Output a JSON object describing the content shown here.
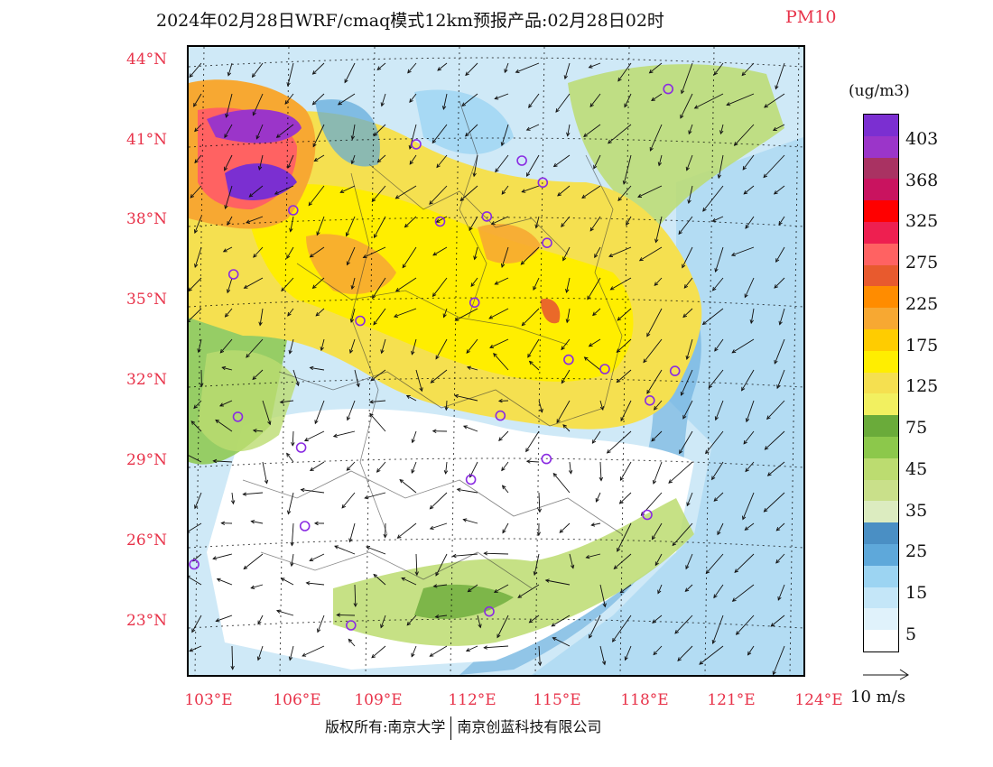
{
  "title": {
    "main": "2024年02月28日WRF/cmaq模式12km预报产品:02月28日02时",
    "species": "PM10"
  },
  "lat_labels": [
    "44°N",
    "41°N",
    "38°N",
    "35°N",
    "32°N",
    "29°N",
    "26°N",
    "23°N"
  ],
  "lon_labels": [
    "103°E",
    "106°E",
    "109°E",
    "112°E",
    "115°E",
    "118°E",
    "121°E",
    "124°E"
  ],
  "colorbar": {
    "unit": "(ug/m3)",
    "labels": [
      "403",
      "368",
      "325",
      "275",
      "225",
      "175",
      "125",
      "75",
      "45",
      "35",
      "25",
      "15",
      "5"
    ],
    "colors": [
      "#7b2fd1",
      "#9b35c9",
      "#a93262",
      "#c9135f",
      "#ff0000",
      "#ee1f50",
      "#ff6262",
      "#e85a2e",
      "#ff8c00",
      "#f7a832",
      "#ffcc00",
      "#ffee00",
      "#f5e050",
      "#f2f060",
      "#6aab3a",
      "#8cc84b",
      "#bcdc70",
      "#c9e08a",
      "#dcecc0",
      "#4a8fc4",
      "#5ea8da",
      "#9cd4f2",
      "#c4e6f8",
      "#e0f2fb",
      "#ffffff"
    ]
  },
  "wind_reference": {
    "label": "10 m/s"
  },
  "footer": {
    "left": "版权所有:南京大学",
    "right": "南京创蓝科技有限公司"
  },
  "stations": [
    [
      0.78,
      0.067
    ],
    [
      0.37,
      0.155
    ],
    [
      0.542,
      0.181
    ],
    [
      0.576,
      0.216
    ],
    [
      0.17,
      0.26
    ],
    [
      0.409,
      0.278
    ],
    [
      0.485,
      0.27
    ],
    [
      0.583,
      0.312
    ],
    [
      0.073,
      0.362
    ],
    [
      0.465,
      0.407
    ],
    [
      0.279,
      0.436
    ],
    [
      0.618,
      0.498
    ],
    [
      0.677,
      0.513
    ],
    [
      0.791,
      0.516
    ],
    [
      0.75,
      0.563
    ],
    [
      0.08,
      0.589
    ],
    [
      0.507,
      0.587
    ],
    [
      0.183,
      0.638
    ],
    [
      0.582,
      0.656
    ],
    [
      0.459,
      0.689
    ],
    [
      0.746,
      0.745
    ],
    [
      0.189,
      0.763
    ],
    [
      0.009,
      0.824
    ],
    [
      0.489,
      0.899
    ],
    [
      0.264,
      0.921
    ]
  ]
}
